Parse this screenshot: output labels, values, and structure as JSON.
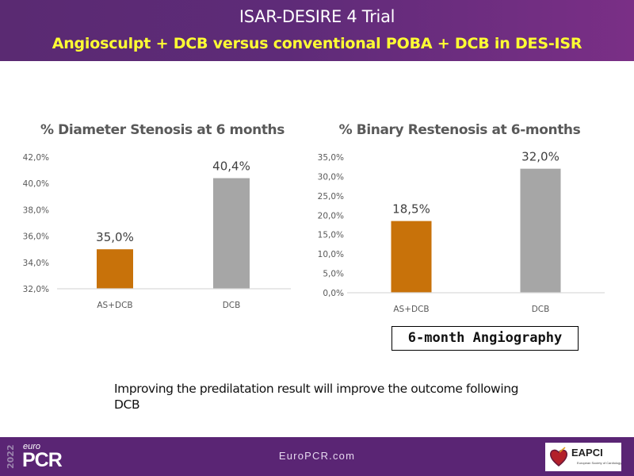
{
  "header": {
    "title": "ISAR-DESIRE 4 Trial",
    "subtitle": "Angiosculpt + DCB versus conventional POBA + DCB in DES-ISR"
  },
  "colors": {
    "orange": "#c8720a",
    "gray": "#a6a6a6",
    "header_purple": "#5e2b78",
    "subtitle_yellow": "#ffff33"
  },
  "chart_data": [
    {
      "type": "bar",
      "title": "% Diameter Stenosis at 6 months",
      "categories": [
        "AS+DCB",
        "DCB"
      ],
      "values": [
        35.0,
        40.4
      ],
      "value_labels": [
        "35,0%",
        "40,4%"
      ],
      "ylim": [
        32,
        42
      ],
      "yticks": [
        32,
        34,
        36,
        38,
        40,
        42
      ],
      "ytick_labels": [
        "32,0%",
        "34,0%",
        "36,0%",
        "38,0%",
        "40,0%",
        "42,0%"
      ],
      "xlabel": "",
      "ylabel": "",
      "grid": false,
      "legend": "none"
    },
    {
      "type": "bar",
      "title": "% Binary Restenosis at 6-months",
      "categories": [
        "AS+DCB",
        "DCB"
      ],
      "values": [
        18.5,
        32.0
      ],
      "value_labels": [
        "18,5%",
        "32,0%"
      ],
      "ylim": [
        0,
        35
      ],
      "yticks": [
        0,
        5,
        10,
        15,
        20,
        25,
        30,
        35
      ],
      "ytick_labels": [
        "0,0%",
        "5,0%",
        "10,0%",
        "15,0%",
        "20,0%",
        "25,0%",
        "30,0%",
        "35,0%"
      ],
      "xlabel": "",
      "ylabel": "",
      "grid": false,
      "legend": "none"
    }
  ],
  "boxed_label": "6-month Angiography",
  "conclusion": "Improving the predilatation result will improve the outcome following DCB",
  "footer": {
    "logo_year": "2022",
    "logo_euro": "euro",
    "logo_pcr": "PCR",
    "url": "EuroPCR.com",
    "eapci_name": "EAPCI",
    "eapci_sub": "European Society of Cardiology"
  }
}
